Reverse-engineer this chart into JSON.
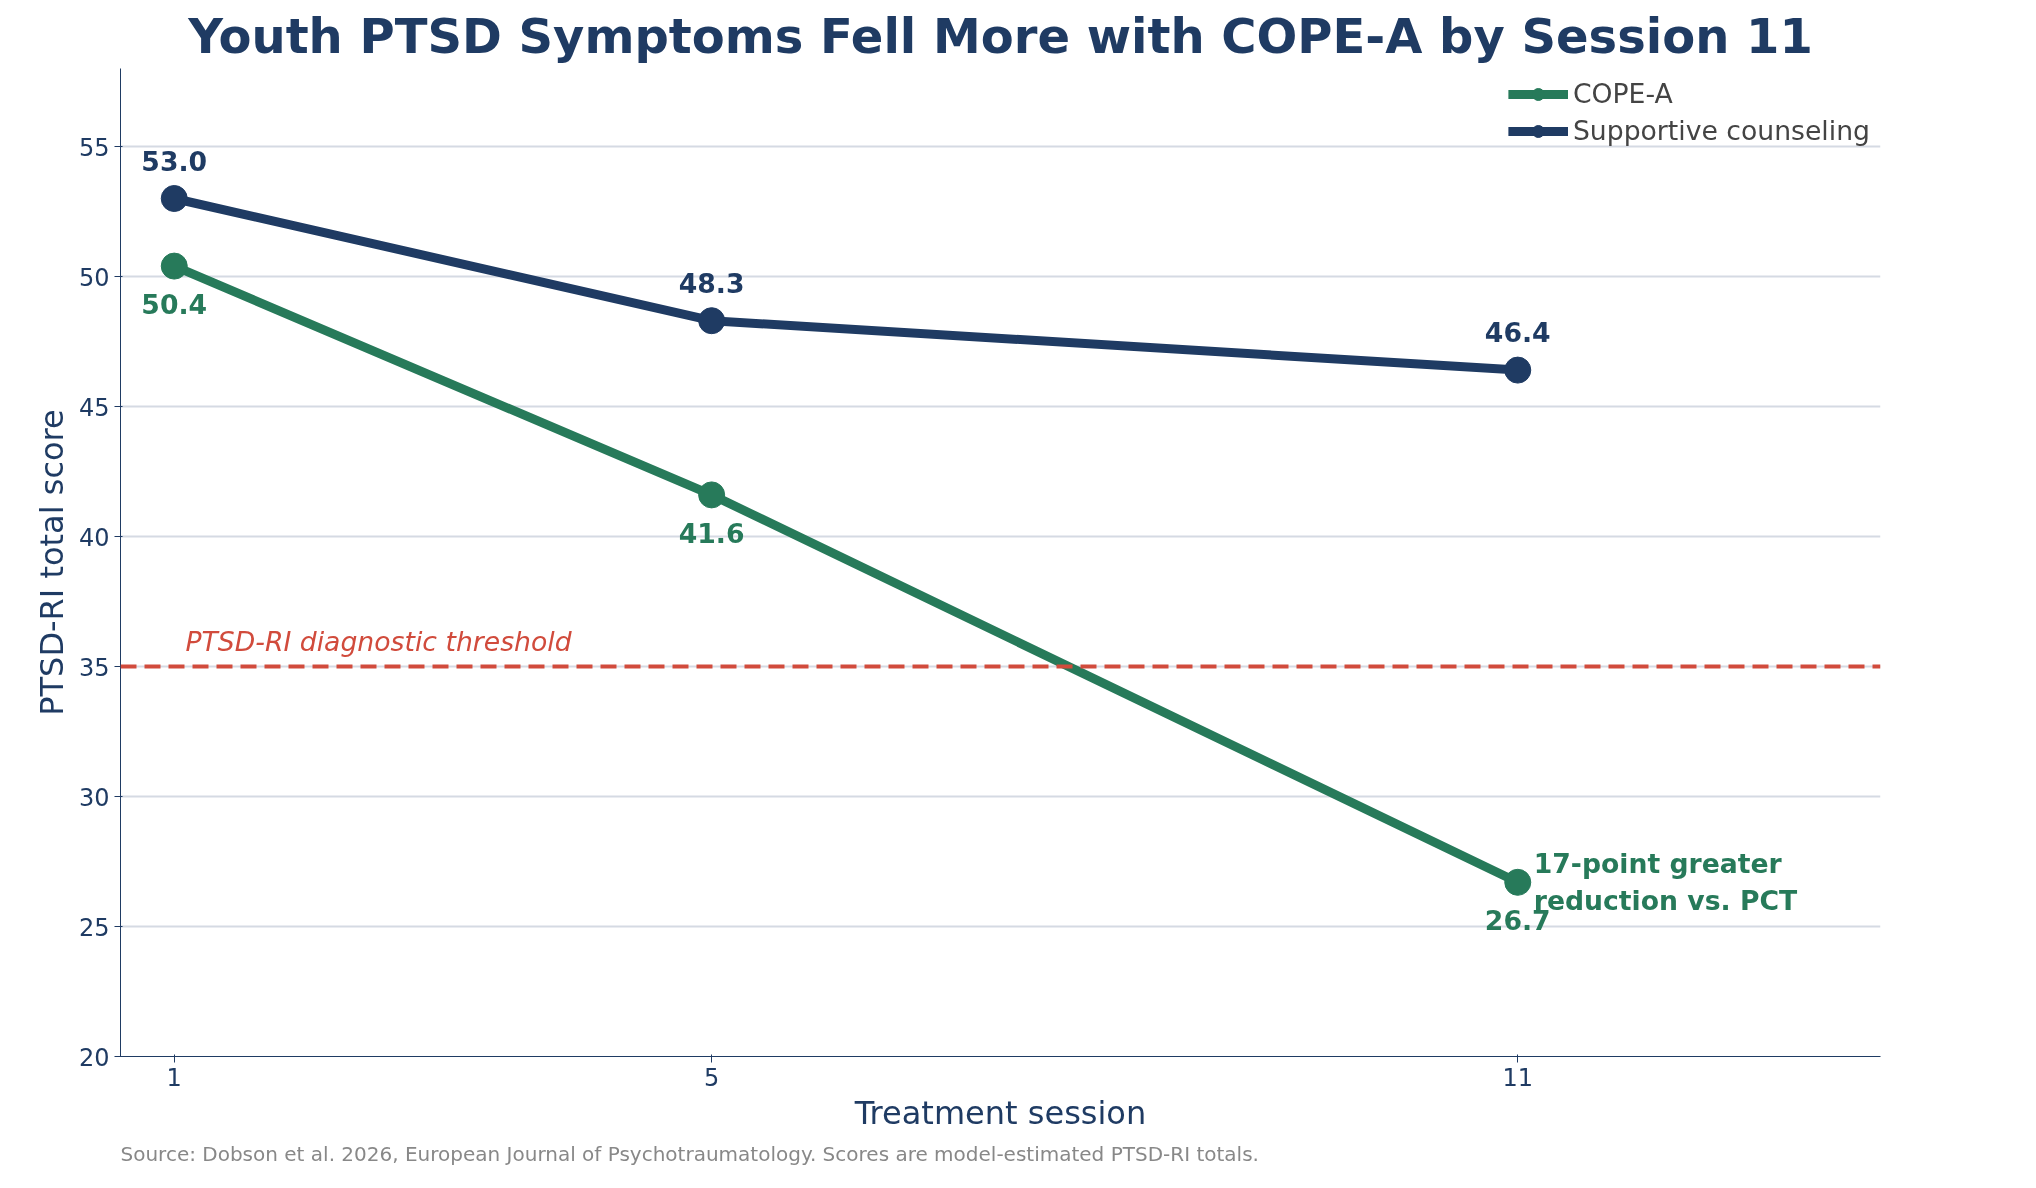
{
  "chart_data": {
    "type": "line",
    "title": "Youth PTSD Symptoms Fell More with COPE-A by Session 11",
    "xlabel": "Treatment session",
    "ylabel": "PTSD-RI total score",
    "x": [
      1,
      5,
      11
    ],
    "series": [
      {
        "name": "COPE-A",
        "color": "#277a5a",
        "values": [
          50.4,
          41.6,
          26.7
        ],
        "value_labels": [
          "50.4",
          "41.6",
          "26.7"
        ]
      },
      {
        "name": "Supportive counseling",
        "color": "#1f3b63",
        "values": [
          53.0,
          48.3,
          46.4
        ],
        "value_labels": [
          "53.0",
          "48.3",
          "46.4"
        ]
      }
    ],
    "xlim": [
      0.6,
      13.7
    ],
    "xticks": [
      1,
      5,
      11
    ],
    "ylim": [
      20,
      58
    ],
    "yticks": [
      20,
      25,
      30,
      35,
      40,
      45,
      50,
      55
    ],
    "ref_lines": [
      {
        "axis": "y",
        "value": 35,
        "label": "PTSD-RI diagnostic threshold",
        "color": "#d14b3c",
        "line_style": "dashed"
      }
    ],
    "annotations": [
      {
        "text": "17-point greater\nreduction vs. PCT",
        "x": 11,
        "y": 26.7
      },
      "Source: Dobson et al. 2026, European Journal of Psychotraumatology. Scores are model-estimated PTSD-RI totals."
    ],
    "grid": "y",
    "legend": "top right",
    "marker": "circle",
    "line_style": "solid"
  }
}
